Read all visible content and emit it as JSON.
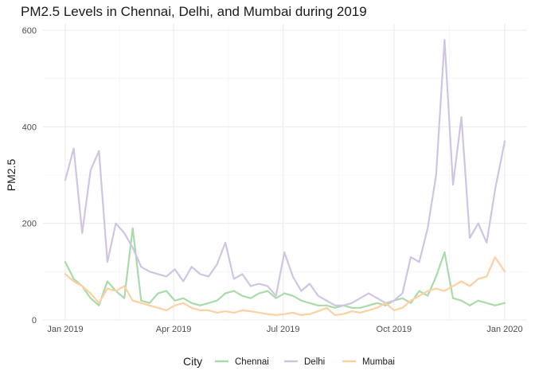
{
  "chart_data": {
    "type": "line",
    "title": "PM2.5 Levels in Chennai, Delhi, and Mumbai during 2019",
    "xlabel": "",
    "ylabel": "PM2.5",
    "x_ticks": [
      "Jan 2019",
      "Apr 2019",
      "Jul 2019",
      "Oct 2019",
      "Jan 2020"
    ],
    "x_tick_dates": [
      "2019-01-01",
      "2019-04-01",
      "2019-07-01",
      "2019-10-01",
      "2020-01-01"
    ],
    "xlim": [
      "2019-01-01",
      "2020-01-01"
    ],
    "y_ticks": [
      0,
      200,
      400,
      600
    ],
    "ylim": [
      0,
      600
    ],
    "grid": true,
    "legend_title": "City",
    "legend_position": "bottom",
    "dates": [
      "2019-01-01",
      "2019-01-08",
      "2019-01-15",
      "2019-01-22",
      "2019-01-29",
      "2019-02-05",
      "2019-02-12",
      "2019-02-19",
      "2019-02-26",
      "2019-03-05",
      "2019-03-12",
      "2019-03-19",
      "2019-03-26",
      "2019-04-02",
      "2019-04-09",
      "2019-04-16",
      "2019-04-23",
      "2019-04-30",
      "2019-05-07",
      "2019-05-14",
      "2019-05-21",
      "2019-05-28",
      "2019-06-04",
      "2019-06-11",
      "2019-06-18",
      "2019-06-25",
      "2019-07-02",
      "2019-07-09",
      "2019-07-16",
      "2019-07-23",
      "2019-07-30",
      "2019-08-06",
      "2019-08-13",
      "2019-08-20",
      "2019-08-27",
      "2019-09-03",
      "2019-09-10",
      "2019-09-17",
      "2019-09-24",
      "2019-10-01",
      "2019-10-08",
      "2019-10-15",
      "2019-10-22",
      "2019-10-29",
      "2019-11-05",
      "2019-11-12",
      "2019-11-19",
      "2019-11-26",
      "2019-12-03",
      "2019-12-10",
      "2019-12-17",
      "2019-12-24",
      "2020-01-01"
    ],
    "series": [
      {
        "name": "Chennai",
        "color": "#a8dba8",
        "values": [
          120,
          85,
          70,
          45,
          30,
          80,
          60,
          45,
          190,
          40,
          35,
          55,
          60,
          40,
          45,
          35,
          30,
          35,
          40,
          55,
          60,
          50,
          45,
          55,
          60,
          45,
          55,
          50,
          40,
          35,
          30,
          30,
          25,
          30,
          25,
          25,
          30,
          35,
          30,
          40,
          45,
          35,
          60,
          50,
          90,
          140,
          45,
          40,
          30,
          40,
          35,
          30,
          35
        ]
      },
      {
        "name": "Delhi",
        "color": "#cfc5e3",
        "values": [
          290,
          355,
          180,
          310,
          350,
          120,
          200,
          180,
          150,
          110,
          100,
          95,
          90,
          105,
          80,
          110,
          95,
          90,
          115,
          160,
          85,
          95,
          70,
          75,
          70,
          50,
          140,
          90,
          60,
          75,
          50,
          40,
          30,
          30,
          35,
          45,
          55,
          45,
          35,
          40,
          55,
          130,
          120,
          190,
          300,
          580,
          280,
          420,
          170,
          200,
          160,
          270,
          370
        ]
      },
      {
        "name": "Mumbai",
        "color": "#fdd0a2",
        "values": [
          95,
          80,
          70,
          55,
          35,
          65,
          60,
          70,
          40,
          35,
          30,
          25,
          20,
          30,
          35,
          25,
          20,
          20,
          15,
          18,
          15,
          20,
          18,
          15,
          12,
          10,
          12,
          15,
          10,
          12,
          18,
          25,
          10,
          12,
          18,
          15,
          20,
          25,
          35,
          20,
          25,
          40,
          50,
          60,
          65,
          60,
          70,
          80,
          70,
          85,
          90,
          130,
          100
        ]
      }
    ]
  }
}
